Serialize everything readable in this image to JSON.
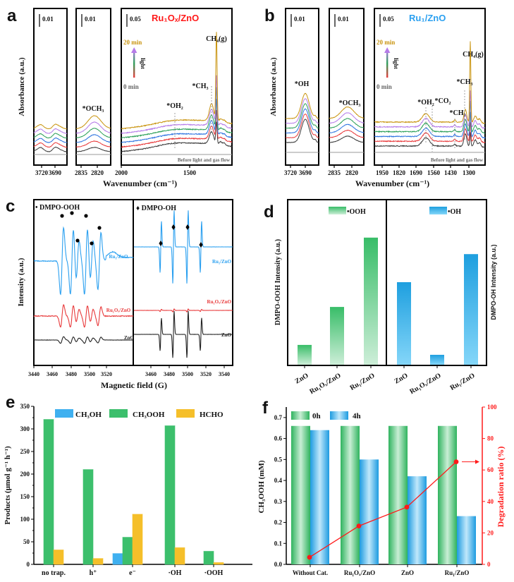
{
  "panel_labels": {
    "a": "a",
    "b": "b",
    "c": "c",
    "d": "d",
    "e": "e",
    "f": "f"
  },
  "colors": {
    "t0": "#3a3a3a",
    "t1": "#e8393a",
    "t2": "#2e74e0",
    "t3": "#2ea05a",
    "t4": "#b57be8",
    "t5": "#c9940f",
    "before": "#9a9a9a",
    "ru1": "#2ba0f0",
    "ru1ox": "#e8393a",
    "zno": "#222222",
    "ch3oh": "#3fb0f0",
    "ch3ooh": "#3cbf6c",
    "hcho": "#f5bf2a",
    "h0": "#3cbf6c",
    "h4": "#3fb0f0",
    "degradation": "#ff1a1a"
  },
  "chart_data": [
    {
      "panel": "a",
      "type": "line",
      "title": "Ru₁Oₓ/ZnO",
      "ylabel": "Absorbance (a.u.)",
      "xlabel": "Wavenumber (cm⁻¹)",
      "scale_bars": [
        "0.01",
        "0.01",
        "0.05"
      ],
      "x_ticks": [
        [
          "3720",
          "3690"
        ],
        [
          "2835",
          "2820"
        ],
        [
          "2000",
          "1500"
        ]
      ],
      "annotations": {
        "och3": "*OCH₃",
        "oh2": "*OH₂",
        "ch3": "*CH₃",
        "ch4": "CH₄(g)"
      },
      "time_arrow": {
        "start": "0 min",
        "end": "20 min",
        "label": "light"
      },
      "baseline_label": "Before light and gas flow"
    },
    {
      "panel": "b",
      "type": "line",
      "title": "Ru₁/ZnO",
      "ylabel": "Absorbance (a.u.)",
      "xlabel": "Wavenumber (cm⁻¹)",
      "scale_bars": [
        "0.01",
        "0.01",
        "0.05"
      ],
      "x_ticks": [
        [
          "3720",
          "3690"
        ],
        [
          "2835",
          "2820"
        ],
        [
          "1950",
          "1820",
          "1690",
          "1560",
          "1430",
          "1300"
        ]
      ],
      "annotations": {
        "oh": "*OH",
        "och3": "*OCH₃",
        "oh2": "*OH₂",
        "co2": "*CO₂",
        "ch2": "*CH₂",
        "ch3": "*CH₃",
        "ch4": "CH₄(g)"
      },
      "time_arrow": {
        "start": "0 min",
        "end": "20 min",
        "label": "light"
      },
      "baseline_label": "Before light and gas flow"
    },
    {
      "panel": "c",
      "type": "line",
      "ylabel": "Intensity (a.u.)",
      "xlabel": "Magnetic field (G)",
      "legend": [
        "• DMPO-OOH",
        "♦ DMPO-OH"
      ],
      "x_ticks_left": [
        "3440",
        "3460",
        "3480",
        "3500",
        "3520"
      ],
      "x_ticks_right": [
        "3460",
        "3480",
        "3500",
        "3520",
        "3540"
      ],
      "series": [
        {
          "name": "Ru₁/ZnO"
        },
        {
          "name": "Ru₁Oₓ/ZnO"
        },
        {
          "name": "ZnO"
        }
      ]
    },
    {
      "panel": "d",
      "type": "bar",
      "ylabel_left": "DMPO-OOH Intensity (a.u.)",
      "ylabel_right": "DMPO-OH Intensity (a.u.)",
      "groups": [
        {
          "name": "•OOH",
          "categories": [
            "ZnO",
            "Ru₁Oₓ/ZnO",
            "Ru₁/ZnO"
          ],
          "values": [
            0.12,
            0.35,
            0.77
          ]
        },
        {
          "name": "•OH",
          "categories": [
            "ZnO",
            "Ru₁Oₓ/ZnO",
            "Ru₁/ZnO"
          ],
          "values": [
            0.5,
            0.06,
            0.67
          ]
        }
      ]
    },
    {
      "panel": "e",
      "type": "bar",
      "ylabel": "Products (μmol g⁻¹ h⁻¹)",
      "categories": [
        "no trap.",
        "h⁺",
        "e⁻",
        "·OH",
        "·OOH"
      ],
      "ylim": [
        0,
        350
      ],
      "y_ticks": [
        "0",
        "50",
        "100",
        "150",
        "200",
        "250",
        "300",
        "350"
      ],
      "series": [
        {
          "name": "CH₃OH",
          "values": [
            0,
            0,
            24,
            0,
            0
          ]
        },
        {
          "name": "CH₃OOH",
          "values": [
            321,
            210,
            60,
            307,
            29
          ]
        },
        {
          "name": "HCHO",
          "values": [
            32,
            13,
            111,
            37,
            4
          ]
        }
      ],
      "legend": "top"
    },
    {
      "panel": "f",
      "type": "bar",
      "ylabel": "CH₃OOH (mM)",
      "ylabel_right": "Degradation ratio (%)",
      "categories": [
        "Without Cat.",
        "Ru₁Oₓ/ZnO",
        "ZnO",
        "Ru₁/ZnO"
      ],
      "ylim": [
        0,
        0.75
      ],
      "y_ticks": [
        "0.0",
        "0.1",
        "0.2",
        "0.3",
        "0.4",
        "0.5",
        "0.6",
        "0.7"
      ],
      "y2lim": [
        0,
        100
      ],
      "y2_ticks": [
        "0",
        "20",
        "40",
        "60",
        "80",
        "100"
      ],
      "series": [
        {
          "name": "0h",
          "values": [
            0.66,
            0.66,
            0.66,
            0.66
          ]
        },
        {
          "name": "4h",
          "values": [
            0.64,
            0.5,
            0.42,
            0.23
          ]
        }
      ],
      "line_series": {
        "values": [
          4.5,
          24.4,
          36.4,
          65.2
        ]
      },
      "legend": "top-left"
    }
  ]
}
